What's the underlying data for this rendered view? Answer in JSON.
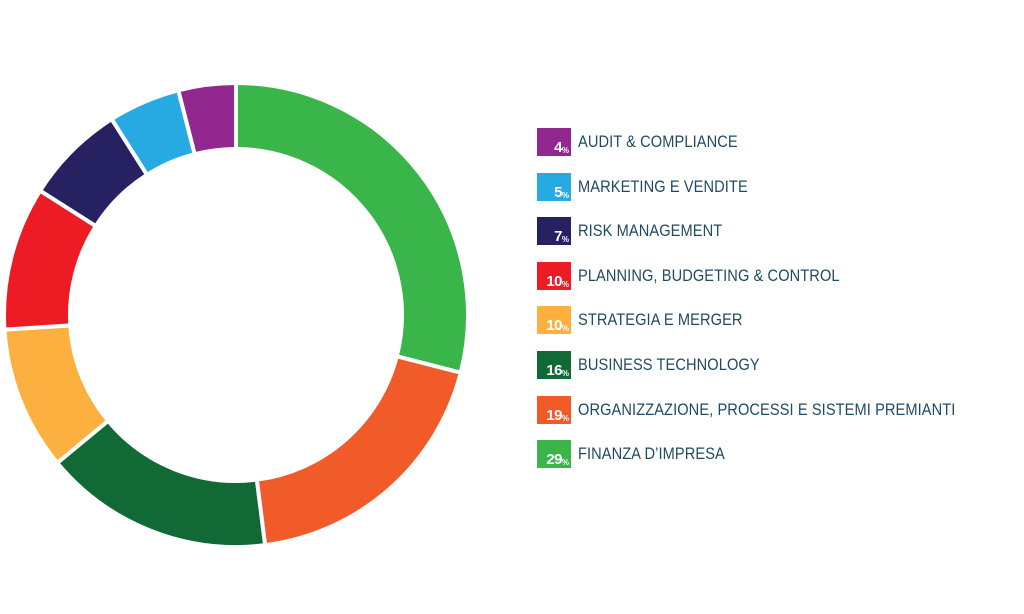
{
  "chart_data": {
    "type": "pie",
    "variant": "donut",
    "unit": "%",
    "legend_position": "right",
    "slices": [
      {
        "label": "AUDIT & COMPLIANCE",
        "value": 4,
        "color": "#92278f"
      },
      {
        "label": "MARKETING E VENDITE",
        "value": 5,
        "color": "#27aae1"
      },
      {
        "label": "RISK MANAGEMENT",
        "value": 7,
        "color": "#262262"
      },
      {
        "label": "PLANNING, BUDGETING & CONTROL",
        "value": 10,
        "color": "#ed1c24"
      },
      {
        "label": "STRATEGIA E MERGER",
        "value": 10,
        "color": "#fbb040"
      },
      {
        "label": "BUSINESS TECHNOLOGY",
        "value": 16,
        "color": "#116936"
      },
      {
        "label": "ORGANIZZAZIONE, PROCESSI E SISTEMI PREMIANTI",
        "value": 19,
        "color": "#f15a29"
      },
      {
        "label": "FINANZA D’IMPRESA",
        "value": 29,
        "color": "#39b54a"
      }
    ]
  }
}
